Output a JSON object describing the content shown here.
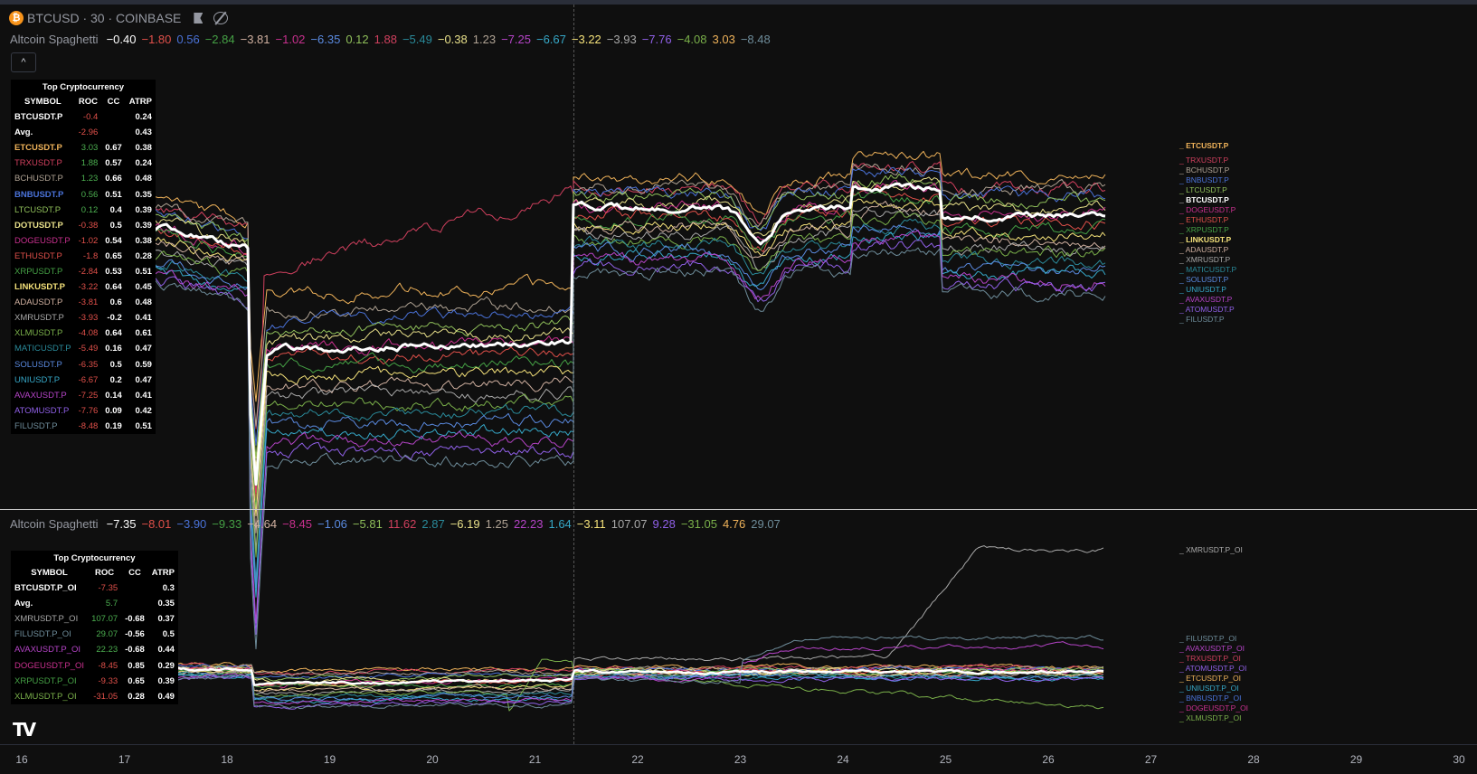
{
  "header": {
    "symbol": "BTCUSD",
    "interval": "30",
    "exchange": "COINBASE",
    "title": "BTCUSD · 30 · COINBASE",
    "coin_icon": "bitcoin-icon"
  },
  "colors": {
    "BTC": "#ffffff",
    "ETC": "#f0b35a",
    "TRX": "#d0405e",
    "BCH": "#b0a394",
    "BNB": "#4a72d8",
    "LTC": "#8fbf5a",
    "DOT": "#e8e08a",
    "DOGE": "#c8308e",
    "ETH": "#e0504a",
    "XRP": "#45a045",
    "LINK": "#f5e27a",
    "ADA": "#d0b0a0",
    "XMR": "#a8a8a8",
    "XLM": "#7ab04a",
    "MATIC": "#2a8a9a",
    "SOL": "#5a8ae0",
    "UNI": "#36a8c8",
    "AVAX": "#b644c8",
    "ATOM": "#9060e8",
    "FIL": "#6e8c9a",
    "positive": "#4caf50",
    "negative": "#e0504a"
  },
  "pane1": {
    "indicator": "Altcoin Spaghetti",
    "legend_values": [
      {
        "v": "−0.40",
        "c": "#ffffff"
      },
      {
        "v": "−1.80",
        "c": "#e0504a"
      },
      {
        "v": "0.56",
        "c": "#4a72d8"
      },
      {
        "v": "−2.84",
        "c": "#45a045"
      },
      {
        "v": "−3.81",
        "c": "#d0b0a0"
      },
      {
        "v": "−1.02",
        "c": "#c8308e"
      },
      {
        "v": "−6.35",
        "c": "#5a8ae0"
      },
      {
        "v": "0.12",
        "c": "#8fbf5a"
      },
      {
        "v": "1.88",
        "c": "#d0405e"
      },
      {
        "v": "−5.49",
        "c": "#2a8a9a"
      },
      {
        "v": "−0.38",
        "c": "#e8e08a"
      },
      {
        "v": "1.23",
        "c": "#b0a394"
      },
      {
        "v": "−7.25",
        "c": "#b644c8"
      },
      {
        "v": "−6.67",
        "c": "#36a8c8"
      },
      {
        "v": "−3.22",
        "c": "#f5e27a"
      },
      {
        "v": "−3.93",
        "c": "#a8a8a8"
      },
      {
        "v": "−7.76",
        "c": "#9060e8"
      },
      {
        "v": "−4.08",
        "c": "#7ab04a"
      },
      {
        "v": "3.03",
        "c": "#f0b35a"
      },
      {
        "v": "−8.48",
        "c": "#6e8c9a"
      }
    ],
    "table": {
      "title": "Top Cryptocurrency",
      "headers": [
        "SYMBOL",
        "ROC",
        "CC",
        "ATRP"
      ],
      "rows": [
        {
          "symbol": "BTCUSDT.P",
          "roc": "-0.4",
          "cc": "",
          "atrp": "0.24",
          "color": "#ffffff",
          "bold": true
        },
        {
          "symbol": "Avg.",
          "roc": "-2.96",
          "cc": "",
          "atrp": "0.43",
          "color": "#ffffff",
          "bold": true
        },
        {
          "symbol": "ETCUSDT.P",
          "roc": "3.03",
          "cc": "0.67",
          "atrp": "0.38",
          "color": "#f0b35a",
          "bold": true
        },
        {
          "symbol": "TRXUSDT.P",
          "roc": "1.88",
          "cc": "0.57",
          "atrp": "0.24",
          "color": "#d0405e"
        },
        {
          "symbol": "BCHUSDT.P",
          "roc": "1.23",
          "cc": "0.66",
          "atrp": "0.48",
          "color": "#b0a394"
        },
        {
          "symbol": "BNBUSDT.P",
          "roc": "0.56",
          "cc": "0.51",
          "atrp": "0.35",
          "color": "#4a72d8",
          "bold": true
        },
        {
          "symbol": "LTCUSDT.P",
          "roc": "0.12",
          "cc": "0.4",
          "atrp": "0.39",
          "color": "#8fbf5a"
        },
        {
          "symbol": "DOTUSDT.P",
          "roc": "-0.38",
          "cc": "0.5",
          "atrp": "0.39",
          "color": "#e8e08a",
          "bold": true
        },
        {
          "symbol": "DOGEUSDT.P",
          "roc": "-1.02",
          "cc": "0.54",
          "atrp": "0.38",
          "color": "#c8308e"
        },
        {
          "symbol": "ETHUSDT.P",
          "roc": "-1.8",
          "cc": "0.65",
          "atrp": "0.28",
          "color": "#e0504a"
        },
        {
          "symbol": "XRPUSDT.P",
          "roc": "-2.84",
          "cc": "0.53",
          "atrp": "0.51",
          "color": "#45a045"
        },
        {
          "symbol": "LINKUSDT.P",
          "roc": "-3.22",
          "cc": "0.64",
          "atrp": "0.45",
          "color": "#f5e27a",
          "bold": true
        },
        {
          "symbol": "ADAUSDT.P",
          "roc": "-3.81",
          "cc": "0.6",
          "atrp": "0.48",
          "color": "#d0b0a0"
        },
        {
          "symbol": "XMRUSDT.P",
          "roc": "-3.93",
          "cc": "-0.2",
          "atrp": "0.41",
          "color": "#a8a8a8"
        },
        {
          "symbol": "XLMUSDT.P",
          "roc": "-4.08",
          "cc": "0.64",
          "atrp": "0.61",
          "color": "#7ab04a"
        },
        {
          "symbol": "MATICUSDT.P",
          "roc": "-5.49",
          "cc": "0.16",
          "atrp": "0.47",
          "color": "#2a8a9a"
        },
        {
          "symbol": "SOLUSDT.P",
          "roc": "-6.35",
          "cc": "0.5",
          "atrp": "0.59",
          "color": "#5a8ae0"
        },
        {
          "symbol": "UNIUSDT.P",
          "roc": "-6.67",
          "cc": "0.2",
          "atrp": "0.47",
          "color": "#36a8c8"
        },
        {
          "symbol": "AVAXUSDT.P",
          "roc": "-7.25",
          "cc": "0.14",
          "atrp": "0.41",
          "color": "#b644c8"
        },
        {
          "symbol": "ATOMUSDT.P",
          "roc": "-7.76",
          "cc": "0.09",
          "atrp": "0.42",
          "color": "#9060e8"
        },
        {
          "symbol": "FILUSDT.P",
          "roc": "-8.48",
          "cc": "0.19",
          "atrp": "0.51",
          "color": "#6e8c9a"
        }
      ]
    },
    "right_labels": [
      {
        "t": "ETCUSDT.P",
        "c": "#f0b35a"
      },
      {
        "t": "TRXUSDT.P",
        "c": "#d0405e"
      },
      {
        "t": "BCHUSDT.P",
        "c": "#b0a394"
      },
      {
        "t": "BNBUSDT.P",
        "c": "#4a72d8"
      },
      {
        "t": "LTCUSDT.P",
        "c": "#8fbf5a"
      },
      {
        "t": "BTCUSDT.P",
        "c": "#ffffff"
      },
      {
        "t": "DOGEUSDT.P",
        "c": "#c8308e"
      },
      {
        "t": "ETHUSDT.P",
        "c": "#e0504a"
      },
      {
        "t": "XRPUSDT.P",
        "c": "#45a045"
      },
      {
        "t": "LINKUSDT.P",
        "c": "#f5e27a"
      },
      {
        "t": "ADAUSDT.P",
        "c": "#d0b0a0"
      },
      {
        "t": "XMRUSDT.P",
        "c": "#a8a8a8"
      },
      {
        "t": "MATICUSDT.P",
        "c": "#2a8a9a"
      },
      {
        "t": "SOLUSDT.P",
        "c": "#5a8ae0"
      },
      {
        "t": "UNIUSDT.P",
        "c": "#36a8c8"
      },
      {
        "t": "AVAXUSDT.P",
        "c": "#b644c8"
      },
      {
        "t": "ATOMUSDT.P",
        "c": "#9060e8"
      },
      {
        "t": "FILUSDT.P",
        "c": "#6e8c9a"
      }
    ]
  },
  "pane2": {
    "indicator": "Altcoin Spaghetti",
    "legend_values": [
      {
        "v": "−7.35",
        "c": "#ffffff"
      },
      {
        "v": "−8.01",
        "c": "#e0504a"
      },
      {
        "v": "−3.90",
        "c": "#4a72d8"
      },
      {
        "v": "−9.33",
        "c": "#45a045"
      },
      {
        "v": "−4.64",
        "c": "#d0b0a0"
      },
      {
        "v": "−8.45",
        "c": "#c8308e"
      },
      {
        "v": "−1.06",
        "c": "#5a8ae0"
      },
      {
        "v": "−5.81",
        "c": "#8fbf5a"
      },
      {
        "v": "11.62",
        "c": "#d0405e"
      },
      {
        "v": "2.87",
        "c": "#2a8a9a"
      },
      {
        "v": "−6.19",
        "c": "#e8e08a"
      },
      {
        "v": "1.25",
        "c": "#b0a394"
      },
      {
        "v": "22.23",
        "c": "#b644c8"
      },
      {
        "v": "1.64",
        "c": "#36a8c8"
      },
      {
        "v": "−3.11",
        "c": "#f5e27a"
      },
      {
        "v": "107.07",
        "c": "#a8a8a8"
      },
      {
        "v": "9.28",
        "c": "#9060e8"
      },
      {
        "v": "−31.05",
        "c": "#7ab04a"
      },
      {
        "v": "4.76",
        "c": "#f0b35a"
      },
      {
        "v": "29.07",
        "c": "#6e8c9a"
      }
    ],
    "table": {
      "title": "Top Cryptocurrency",
      "headers": [
        "SYMBOL",
        "ROC",
        "CC",
        "ATRP"
      ],
      "rows": [
        {
          "symbol": "BTCUSDT.P_OI",
          "roc": "-7.35",
          "cc": "",
          "atrp": "0.3",
          "color": "#ffffff",
          "bold": true
        },
        {
          "symbol": "Avg.",
          "roc": "5.7",
          "cc": "",
          "atrp": "0.35",
          "color": "#ffffff",
          "bold": true
        },
        {
          "symbol": "XMRUSDT.P_OI",
          "roc": "107.07",
          "cc": "-0.68",
          "atrp": "0.37",
          "color": "#a8a8a8"
        },
        {
          "symbol": "FILUSDT.P_OI",
          "roc": "29.07",
          "cc": "-0.56",
          "atrp": "0.5",
          "color": "#6e8c9a"
        },
        {
          "symbol": "AVAXUSDT.P_OI",
          "roc": "22.23",
          "cc": "-0.68",
          "atrp": "0.44",
          "color": "#b644c8"
        },
        {
          "symbol": "DOGEUSDT.P_OI",
          "roc": "-8.45",
          "cc": "0.85",
          "atrp": "0.29",
          "color": "#c8308e"
        },
        {
          "symbol": "XRPUSDT.P_OI",
          "roc": "-9.33",
          "cc": "0.65",
          "atrp": "0.39",
          "color": "#45a045"
        },
        {
          "symbol": "XLMUSDT.P_OI",
          "roc": "-31.05",
          "cc": "0.28",
          "atrp": "0.49",
          "color": "#7ab04a"
        }
      ]
    },
    "right_labels": [
      {
        "t": "XMRUSDT.P_OI",
        "c": "#a8a8a8"
      },
      {
        "t": "FILUSDT.P_OI",
        "c": "#6e8c9a"
      },
      {
        "t": "AVAXUSDT.P_OI",
        "c": "#b644c8"
      },
      {
        "t": "TRXUSDT.P_OI",
        "c": "#d0405e"
      },
      {
        "t": "ATOMUSDT.P_OI",
        "c": "#9060e8"
      },
      {
        "t": "ETCUSDT.P_OI",
        "c": "#f0b35a"
      },
      {
        "t": "UNIUSDT.P_OI",
        "c": "#36a8c8"
      },
      {
        "t": "BNBUSDT.P_OI",
        "c": "#4a72d8"
      },
      {
        "t": "DOGEUSDT.P_OI",
        "c": "#c8308e"
      },
      {
        "t": "XLMUSDT.P_OI",
        "c": "#7ab04a"
      }
    ]
  },
  "time_axis": [
    "16",
    "17",
    "18",
    "19",
    "20",
    "21",
    "22",
    "23",
    "24",
    "25",
    "26",
    "27",
    "28",
    "29",
    "30"
  ],
  "collapse_button": "^",
  "logo": "TV"
}
